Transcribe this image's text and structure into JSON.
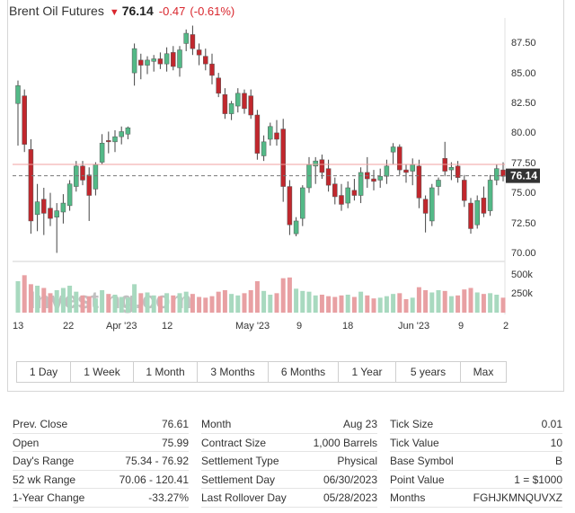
{
  "header": {
    "name": "Brent Oil Futures",
    "price": "76.14",
    "change": "-0.47",
    "change_pct": "(-0.61%)"
  },
  "chart": {
    "price_axis_labels": [
      "87.50",
      "85.00",
      "82.50",
      "80.00",
      "77.50",
      "75.00",
      "72.50",
      "70.00"
    ],
    "current_price_label": "76.14",
    "volume_axis_labels": [
      "500k",
      "250k"
    ],
    "date_labels": [
      "13",
      "22",
      "Apr '23",
      "12",
      "May '23",
      "9",
      "18",
      "Jun '23",
      "9",
      "2"
    ],
    "watermark": "Investing.com",
    "colors": {
      "up": "#53b987",
      "down": "#c1272d",
      "volume_up": "#a8d9bf",
      "volume_down": "#e8a0a3"
    }
  },
  "chart_data": {
    "type": "candlestick",
    "ylim": [
      69.5,
      88.5
    ],
    "current_price": 76.14,
    "reference_price": 76.61,
    "candles": [
      {
        "o": 81.8,
        "h": 83.6,
        "l": 78.5,
        "c": 83.2,
        "v": 420
      },
      {
        "o": 82.4,
        "h": 82.9,
        "l": 78.0,
        "c": 78.6,
        "v": 500
      },
      {
        "o": 78.2,
        "h": 79.0,
        "l": 71.6,
        "c": 72.6,
        "v": 380
      },
      {
        "o": 73.1,
        "h": 75.5,
        "l": 71.8,
        "c": 74.1,
        "v": 360
      },
      {
        "o": 74.3,
        "h": 75.2,
        "l": 71.5,
        "c": 73.2,
        "v": 330
      },
      {
        "o": 73.6,
        "h": 74.8,
        "l": 72.2,
        "c": 72.8,
        "v": 260
      },
      {
        "o": 72.9,
        "h": 74.0,
        "l": 70.1,
        "c": 73.4,
        "v": 300
      },
      {
        "o": 73.3,
        "h": 74.7,
        "l": 72.4,
        "c": 74.0,
        "v": 330
      },
      {
        "o": 73.8,
        "h": 75.8,
        "l": 73.4,
        "c": 75.5,
        "v": 360
      },
      {
        "o": 75.3,
        "h": 77.3,
        "l": 74.9,
        "c": 76.9,
        "v": 280
      },
      {
        "o": 76.9,
        "h": 77.3,
        "l": 75.4,
        "c": 75.8,
        "v": 230
      },
      {
        "o": 76.2,
        "h": 76.8,
        "l": 72.6,
        "c": 74.6,
        "v": 220
      },
      {
        "o": 75.1,
        "h": 77.2,
        "l": 74.6,
        "c": 77.0,
        "v": 190
      },
      {
        "o": 77.2,
        "h": 79.4,
        "l": 77.0,
        "c": 78.7,
        "v": 300
      },
      {
        "o": 78.9,
        "h": 79.6,
        "l": 77.9,
        "c": 78.8,
        "v": 250
      },
      {
        "o": 78.8,
        "h": 79.7,
        "l": 78.0,
        "c": 79.2,
        "v": 240
      },
      {
        "o": 79.2,
        "h": 80.0,
        "l": 78.6,
        "c": 79.6,
        "v": 210
      },
      {
        "o": 79.4,
        "h": 80.0,
        "l": 79.0,
        "c": 79.9,
        "v": 200
      },
      {
        "o": 84.2,
        "h": 86.5,
        "l": 83.2,
        "c": 86.1,
        "v": 380
      },
      {
        "o": 85.2,
        "h": 85.7,
        "l": 83.7,
        "c": 84.8,
        "v": 260
      },
      {
        "o": 84.8,
        "h": 85.5,
        "l": 84.1,
        "c": 85.2,
        "v": 270
      },
      {
        "o": 85.1,
        "h": 85.6,
        "l": 84.3,
        "c": 85.3,
        "v": 230
      },
      {
        "o": 85.3,
        "h": 85.8,
        "l": 84.5,
        "c": 84.9,
        "v": 220
      },
      {
        "o": 84.9,
        "h": 86.2,
        "l": 84.3,
        "c": 85.7,
        "v": 260
      },
      {
        "o": 85.8,
        "h": 86.3,
        "l": 84.4,
        "c": 84.7,
        "v": 230
      },
      {
        "o": 84.6,
        "h": 86.3,
        "l": 83.9,
        "c": 86.0,
        "v": 260
      },
      {
        "o": 86.5,
        "h": 87.6,
        "l": 85.9,
        "c": 87.3,
        "v": 280
      },
      {
        "o": 87.2,
        "h": 87.9,
        "l": 85.6,
        "c": 86.1,
        "v": 250
      },
      {
        "o": 86.0,
        "h": 86.5,
        "l": 84.8,
        "c": 85.6,
        "v": 210
      },
      {
        "o": 85.5,
        "h": 86.1,
        "l": 84.4,
        "c": 84.9,
        "v": 200
      },
      {
        "o": 84.9,
        "h": 85.7,
        "l": 83.3,
        "c": 84.0,
        "v": 220
      },
      {
        "o": 83.8,
        "h": 84.2,
        "l": 82.3,
        "c": 82.6,
        "v": 280
      },
      {
        "o": 82.5,
        "h": 83.0,
        "l": 80.6,
        "c": 81.0,
        "v": 300
      },
      {
        "o": 81.0,
        "h": 82.0,
        "l": 80.5,
        "c": 81.8,
        "v": 250
      },
      {
        "o": 81.6,
        "h": 83.0,
        "l": 81.1,
        "c": 82.6,
        "v": 230
      },
      {
        "o": 82.6,
        "h": 82.9,
        "l": 81.0,
        "c": 81.4,
        "v": 260
      },
      {
        "o": 82.4,
        "h": 82.9,
        "l": 80.6,
        "c": 80.9,
        "v": 300
      },
      {
        "o": 80.9,
        "h": 81.3,
        "l": 77.4,
        "c": 77.9,
        "v": 420
      },
      {
        "o": 77.7,
        "h": 79.3,
        "l": 77.3,
        "c": 78.8,
        "v": 290
      },
      {
        "o": 79.0,
        "h": 80.3,
        "l": 78.5,
        "c": 80.0,
        "v": 240
      },
      {
        "o": 79.5,
        "h": 80.5,
        "l": 78.5,
        "c": 79.0,
        "v": 260
      },
      {
        "o": 79.8,
        "h": 80.6,
        "l": 74.1,
        "c": 75.3,
        "v": 460
      },
      {
        "o": 75.3,
        "h": 75.8,
        "l": 71.5,
        "c": 72.3,
        "v": 470
      },
      {
        "o": 71.6,
        "h": 72.9,
        "l": 71.4,
        "c": 72.6,
        "v": 320
      },
      {
        "o": 72.8,
        "h": 75.4,
        "l": 72.2,
        "c": 75.2,
        "v": 290
      },
      {
        "o": 75.2,
        "h": 77.6,
        "l": 74.8,
        "c": 77.0,
        "v": 280
      },
      {
        "o": 76.9,
        "h": 77.6,
        "l": 75.5,
        "c": 77.3,
        "v": 230
      },
      {
        "o": 77.4,
        "h": 77.8,
        "l": 75.9,
        "c": 76.4,
        "v": 240
      },
      {
        "o": 76.7,
        "h": 77.4,
        "l": 74.9,
        "c": 75.4,
        "v": 220
      },
      {
        "o": 75.5,
        "h": 76.0,
        "l": 73.9,
        "c": 74.5,
        "v": 210
      },
      {
        "o": 74.6,
        "h": 75.5,
        "l": 73.4,
        "c": 73.9,
        "v": 230
      },
      {
        "o": 74.0,
        "h": 75.7,
        "l": 73.6,
        "c": 75.2,
        "v": 240
      },
      {
        "o": 75.0,
        "h": 75.9,
        "l": 74.2,
        "c": 74.6,
        "v": 210
      },
      {
        "o": 74.6,
        "h": 76.8,
        "l": 74.0,
        "c": 76.4,
        "v": 280
      },
      {
        "o": 76.4,
        "h": 77.6,
        "l": 75.2,
        "c": 75.9,
        "v": 230
      },
      {
        "o": 75.9,
        "h": 76.6,
        "l": 75.0,
        "c": 75.7,
        "v": 190
      },
      {
        "o": 75.8,
        "h": 76.7,
        "l": 75.2,
        "c": 76.1,
        "v": 200
      },
      {
        "o": 76.1,
        "h": 77.4,
        "l": 75.5,
        "c": 76.9,
        "v": 220
      },
      {
        "o": 78.0,
        "h": 78.7,
        "l": 77.0,
        "c": 78.4,
        "v": 250
      },
      {
        "o": 78.4,
        "h": 78.6,
        "l": 76.2,
        "c": 76.6,
        "v": 260
      },
      {
        "o": 76.6,
        "h": 77.0,
        "l": 75.6,
        "c": 76.4,
        "v": 180
      },
      {
        "o": 76.5,
        "h": 77.5,
        "l": 75.4,
        "c": 77.0,
        "v": 200
      },
      {
        "o": 76.9,
        "h": 77.4,
        "l": 73.6,
        "c": 74.4,
        "v": 340
      },
      {
        "o": 74.3,
        "h": 74.6,
        "l": 71.7,
        "c": 73.2,
        "v": 300
      },
      {
        "o": 72.6,
        "h": 75.5,
        "l": 72.2,
        "c": 75.2,
        "v": 270
      },
      {
        "o": 75.3,
        "h": 76.0,
        "l": 74.6,
        "c": 75.8,
        "v": 300
      },
      {
        "o": 77.5,
        "h": 78.8,
        "l": 76.1,
        "c": 76.5,
        "v": 290
      },
      {
        "o": 76.6,
        "h": 77.2,
        "l": 75.8,
        "c": 76.8,
        "v": 220
      },
      {
        "o": 76.9,
        "h": 77.3,
        "l": 75.6,
        "c": 76.0,
        "v": 230
      },
      {
        "o": 75.8,
        "h": 76.2,
        "l": 73.7,
        "c": 74.2,
        "v": 310
      },
      {
        "o": 74.0,
        "h": 74.4,
        "l": 71.6,
        "c": 72.0,
        "v": 330
      },
      {
        "o": 72.3,
        "h": 74.6,
        "l": 72.0,
        "c": 74.2,
        "v": 270
      },
      {
        "o": 74.4,
        "h": 75.3,
        "l": 72.9,
        "c": 73.2,
        "v": 250
      },
      {
        "o": 73.4,
        "h": 76.2,
        "l": 73.0,
        "c": 75.8,
        "v": 260
      },
      {
        "o": 75.8,
        "h": 77.0,
        "l": 75.4,
        "c": 76.7,
        "v": 240
      },
      {
        "o": 76.6,
        "h": 77.2,
        "l": 75.7,
        "c": 76.1,
        "v": 200
      }
    ]
  },
  "timeframe_tabs": [
    "1 Day",
    "1 Week",
    "1 Month",
    "3 Months",
    "6 Months",
    "1 Year",
    "5 years",
    "Max"
  ],
  "stats": {
    "col1": [
      {
        "label": "Prev. Close",
        "value": "76.61"
      },
      {
        "label": "Open",
        "value": "75.99"
      },
      {
        "label": "Day's Range",
        "value": "75.34 - 76.92"
      },
      {
        "label": "52 wk Range",
        "value": "70.06 - 120.41"
      },
      {
        "label": "1-Year Change",
        "value": "-33.27%"
      }
    ],
    "col2": [
      {
        "label": "Month",
        "value": "Aug 23"
      },
      {
        "label": "Contract Size",
        "value": "1,000 Barrels"
      },
      {
        "label": "Settlement Type",
        "value": "Physical"
      },
      {
        "label": "Settlement Day",
        "value": "06/30/2023"
      },
      {
        "label": "Last Rollover Day",
        "value": "05/28/2023"
      }
    ],
    "col3": [
      {
        "label": "Tick Size",
        "value": "0.01"
      },
      {
        "label": "Tick Value",
        "value": "10"
      },
      {
        "label": "Base Symbol",
        "value": "B"
      },
      {
        "label": "Point Value",
        "value": "1 = $1000"
      },
      {
        "label": "Months",
        "value": "FGHJKMNQUVXZ"
      }
    ]
  }
}
